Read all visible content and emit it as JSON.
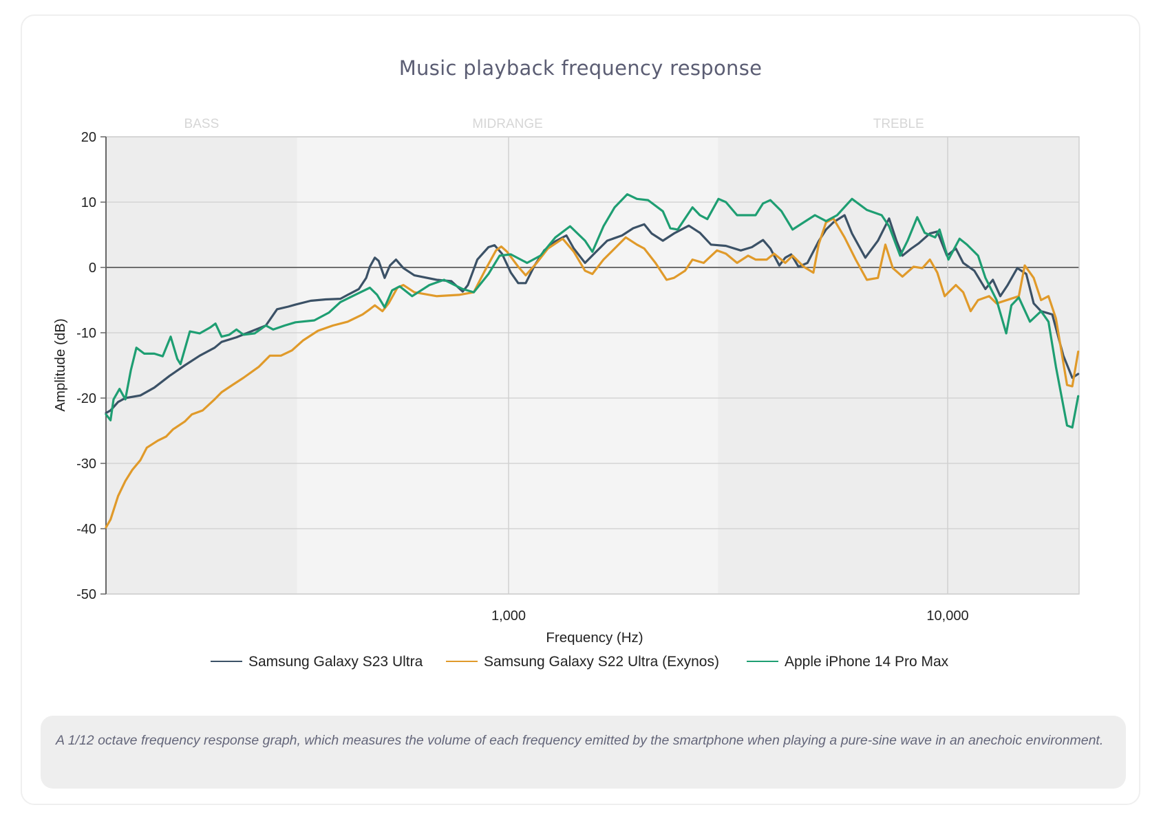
{
  "card": {
    "title": "Music playback frequency response",
    "caption": "A 1/12 octave frequency response graph, which measures the volume of each frequency emitted by the smartphone when playing a pure-sine wave in an anechoic environment."
  },
  "chart_data": {
    "type": "line",
    "title": "Music playback frequency response",
    "xlabel": "Frequency (Hz)",
    "ylabel": "Amplitude (dB)",
    "xscale": "log",
    "xlim": [
      120,
      20000
    ],
    "ylim": [
      -50,
      20
    ],
    "x_ticks": [
      {
        "value": 1000,
        "label": "1,000"
      },
      {
        "value": 10000,
        "label": "10,000"
      }
    ],
    "y_ticks": [
      20,
      10,
      0,
      -10,
      -20,
      -30,
      -40,
      -50
    ],
    "grid": true,
    "legend_position": "bottom",
    "bands": [
      {
        "name": "BASS",
        "from": 120,
        "to": 330,
        "color": "#ededed"
      },
      {
        "name": "MIDRANGE",
        "from": 330,
        "to": 3000,
        "color": "#f4f4f4"
      },
      {
        "name": "TREBLE",
        "from": 3000,
        "to": 20000,
        "color": "#ededed"
      }
    ],
    "series": [
      {
        "name": "Samsung Galaxy S23 Ultra",
        "color": "#3b5166",
        "points": [
          [
            121,
            -22.3
          ],
          [
            124,
            -21.9
          ],
          [
            129,
            -20.6
          ],
          [
            134,
            -20.0
          ],
          [
            145,
            -19.6
          ],
          [
            156,
            -18.4
          ],
          [
            169,
            -16.6
          ],
          [
            183,
            -15.0
          ],
          [
            198,
            -13.5
          ],
          [
            214,
            -12.3
          ],
          [
            222,
            -11.4
          ],
          [
            240,
            -10.7
          ],
          [
            259,
            -9.8
          ],
          [
            280,
            -8.9
          ],
          [
            297,
            -6.4
          ],
          [
            315,
            -6.0
          ],
          [
            327,
            -5.7
          ],
          [
            354,
            -5.1
          ],
          [
            383,
            -4.9
          ],
          [
            414,
            -4.8
          ],
          [
            430,
            -4.2
          ],
          [
            456,
            -3.3
          ],
          [
            474,
            -1.6
          ],
          [
            483,
            0.1
          ],
          [
            496,
            1.5
          ],
          [
            506,
            1.0
          ],
          [
            522,
            -1.6
          ],
          [
            537,
            0.3
          ],
          [
            554,
            1.2
          ],
          [
            576,
            -0.1
          ],
          [
            610,
            -1.2
          ],
          [
            686,
            -1.9
          ],
          [
            741,
            -2.1
          ],
          [
            786,
            -3.7
          ],
          [
            808,
            -2.7
          ],
          [
            849,
            1.2
          ],
          [
            900,
            3.1
          ],
          [
            929,
            3.4
          ],
          [
            966,
            2.1
          ],
          [
            1012,
            -0.8
          ],
          [
            1052,
            -2.4
          ],
          [
            1094,
            -2.4
          ],
          [
            1146,
            0.3
          ],
          [
            1205,
            2.6
          ],
          [
            1278,
            4.0
          ],
          [
            1354,
            4.9
          ],
          [
            1408,
            2.9
          ],
          [
            1493,
            0.7
          ],
          [
            1582,
            2.4
          ],
          [
            1677,
            4.1
          ],
          [
            1813,
            4.9
          ],
          [
            1922,
            6.0
          ],
          [
            2037,
            6.6
          ],
          [
            2118,
            5.2
          ],
          [
            2246,
            4.1
          ],
          [
            2380,
            5.2
          ],
          [
            2573,
            6.4
          ],
          [
            2727,
            5.3
          ],
          [
            2891,
            3.5
          ],
          [
            3126,
            3.3
          ],
          [
            3379,
            2.6
          ],
          [
            3582,
            3.1
          ],
          [
            3797,
            4.2
          ],
          [
            3947,
            2.9
          ],
          [
            4136,
            0.3
          ],
          [
            4266,
            1.5
          ],
          [
            4401,
            2.0
          ],
          [
            4575,
            0.1
          ],
          [
            4794,
            0.7
          ],
          [
            5082,
            4.0
          ],
          [
            5284,
            5.8
          ],
          [
            5493,
            6.9
          ],
          [
            5824,
            8.0
          ],
          [
            6055,
            5.2
          ],
          [
            6494,
            1.5
          ],
          [
            6938,
            4.1
          ],
          [
            7355,
            7.5
          ],
          [
            7646,
            4.1
          ],
          [
            7888,
            1.8
          ],
          [
            8264,
            2.9
          ],
          [
            8592,
            3.7
          ],
          [
            9110,
            5.2
          ],
          [
            9473,
            5.5
          ],
          [
            9960,
            1.8
          ],
          [
            10437,
            2.9
          ],
          [
            10851,
            0.7
          ],
          [
            11503,
            -0.5
          ],
          [
            12193,
            -3.3
          ],
          [
            12677,
            -1.9
          ],
          [
            13179,
            -4.4
          ],
          [
            13701,
            -2.7
          ],
          [
            14410,
            -0.1
          ],
          [
            15100,
            -1.0
          ],
          [
            15700,
            -5.5
          ],
          [
            16322,
            -6.7
          ],
          [
            17305,
            -7.2
          ],
          [
            18344,
            -13.5
          ],
          [
            19222,
            -16.9
          ],
          [
            19828,
            -16.3
          ]
        ]
      },
      {
        "name": "Samsung Galaxy S22 Ultra (Exynos)",
        "color": "#e09a2a",
        "points": [
          [
            121,
            -39.8
          ],
          [
            124,
            -38.6
          ],
          [
            129,
            -35.0
          ],
          [
            134,
            -32.7
          ],
          [
            139,
            -31.0
          ],
          [
            145,
            -29.5
          ],
          [
            150,
            -27.6
          ],
          [
            159,
            -26.5
          ],
          [
            166,
            -25.9
          ],
          [
            172,
            -24.8
          ],
          [
            183,
            -23.6
          ],
          [
            190,
            -22.5
          ],
          [
            201,
            -21.9
          ],
          [
            214,
            -20.2
          ],
          [
            222,
            -19.1
          ],
          [
            235,
            -18.0
          ],
          [
            249,
            -16.9
          ],
          [
            270,
            -15.2
          ],
          [
            286,
            -13.5
          ],
          [
            303,
            -13.5
          ],
          [
            321,
            -12.7
          ],
          [
            340,
            -11.2
          ],
          [
            368,
            -9.7
          ],
          [
            398,
            -8.9
          ],
          [
            430,
            -8.3
          ],
          [
            465,
            -7.2
          ],
          [
            483,
            -6.4
          ],
          [
            496,
            -5.8
          ],
          [
            516,
            -6.7
          ],
          [
            533,
            -5.5
          ],
          [
            558,
            -3.1
          ],
          [
            576,
            -2.7
          ],
          [
            610,
            -3.8
          ],
          [
            686,
            -4.4
          ],
          [
            771,
            -4.2
          ],
          [
            833,
            -3.8
          ],
          [
            883,
            -0.5
          ],
          [
            936,
            2.6
          ],
          [
            962,
            3.2
          ],
          [
            992,
            2.4
          ],
          [
            1052,
            0.1
          ],
          [
            1094,
            -1.2
          ],
          [
            1159,
            0.7
          ],
          [
            1229,
            2.9
          ],
          [
            1328,
            4.4
          ],
          [
            1408,
            2.4
          ],
          [
            1493,
            -0.5
          ],
          [
            1552,
            -1.0
          ],
          [
            1645,
            1.2
          ],
          [
            1744,
            2.9
          ],
          [
            1849,
            4.6
          ],
          [
            1960,
            3.5
          ],
          [
            2037,
            2.9
          ],
          [
            2160,
            0.7
          ],
          [
            2290,
            -1.9
          ],
          [
            2380,
            -1.6
          ],
          [
            2523,
            -0.5
          ],
          [
            2623,
            1.2
          ],
          [
            2781,
            0.7
          ],
          [
            2983,
            2.6
          ],
          [
            3126,
            2.1
          ],
          [
            3314,
            0.7
          ],
          [
            3513,
            1.8
          ],
          [
            3652,
            1.2
          ],
          [
            3871,
            1.2
          ],
          [
            4025,
            2.1
          ],
          [
            4266,
            0.7
          ],
          [
            4435,
            1.8
          ],
          [
            4701,
            0.1
          ],
          [
            4945,
            -0.8
          ],
          [
            5082,
            3.5
          ],
          [
            5284,
            6.9
          ],
          [
            5493,
            7.5
          ],
          [
            5824,
            4.6
          ],
          [
            6174,
            1.2
          ],
          [
            6545,
            -1.9
          ],
          [
            6938,
            -1.6
          ],
          [
            7213,
            3.5
          ],
          [
            7499,
            -0.1
          ],
          [
            7888,
            -1.4
          ],
          [
            8361,
            0.1
          ],
          [
            8761,
            -0.1
          ],
          [
            9110,
            1.2
          ],
          [
            9473,
            -0.8
          ],
          [
            9845,
            -4.4
          ],
          [
            10437,
            -2.7
          ],
          [
            10851,
            -3.8
          ],
          [
            11281,
            -6.7
          ],
          [
            11728,
            -5.0
          ],
          [
            12433,
            -4.4
          ],
          [
            12925,
            -5.5
          ],
          [
            14523,
            -4.4
          ],
          [
            14983,
            0.3
          ],
          [
            15700,
            -1.6
          ],
          [
            16322,
            -5.0
          ],
          [
            16970,
            -4.4
          ],
          [
            17644,
            -7.8
          ],
          [
            18707,
            -18.0
          ],
          [
            19222,
            -18.2
          ],
          [
            19828,
            -12.9
          ]
        ]
      },
      {
        "name": "Apple iPhone 14 Pro Max",
        "color": "#1e9e72",
        "points": [
          [
            121,
            -22.5
          ],
          [
            124,
            -23.4
          ],
          [
            126,
            -20.2
          ],
          [
            130,
            -18.6
          ],
          [
            134,
            -20.2
          ],
          [
            138,
            -15.7
          ],
          [
            142,
            -12.3
          ],
          [
            148,
            -13.2
          ],
          [
            156,
            -13.2
          ],
          [
            163,
            -13.6
          ],
          [
            170,
            -10.6
          ],
          [
            176,
            -14.0
          ],
          [
            179,
            -14.8
          ],
          [
            188,
            -9.8
          ],
          [
            198,
            -10.1
          ],
          [
            209,
            -9.2
          ],
          [
            215,
            -8.6
          ],
          [
            222,
            -10.6
          ],
          [
            231,
            -10.3
          ],
          [
            240,
            -9.5
          ],
          [
            249,
            -10.3
          ],
          [
            264,
            -10.1
          ],
          [
            280,
            -8.9
          ],
          [
            291,
            -9.5
          ],
          [
            309,
            -8.9
          ],
          [
            327,
            -8.4
          ],
          [
            361,
            -8.1
          ],
          [
            390,
            -6.9
          ],
          [
            414,
            -5.3
          ],
          [
            447,
            -4.2
          ],
          [
            483,
            -3.1
          ],
          [
            502,
            -4.2
          ],
          [
            522,
            -6.1
          ],
          [
            543,
            -3.5
          ],
          [
            565,
            -2.9
          ],
          [
            603,
            -4.4
          ],
          [
            660,
            -2.7
          ],
          [
            713,
            -1.9
          ],
          [
            786,
            -3.3
          ],
          [
            833,
            -3.8
          ],
          [
            900,
            -1.0
          ],
          [
            954,
            1.8
          ],
          [
            1012,
            2.0
          ],
          [
            1102,
            0.7
          ],
          [
            1182,
            1.8
          ],
          [
            1278,
            4.6
          ],
          [
            1381,
            6.3
          ],
          [
            1493,
            4.1
          ],
          [
            1552,
            2.4
          ],
          [
            1645,
            6.3
          ],
          [
            1744,
            9.2
          ],
          [
            1863,
            11.2
          ],
          [
            1960,
            10.5
          ],
          [
            2078,
            10.3
          ],
          [
            2246,
            8.6
          ],
          [
            2335,
            6.0
          ],
          [
            2427,
            5.8
          ],
          [
            2623,
            9.2
          ],
          [
            2727,
            8.0
          ],
          [
            2836,
            7.4
          ],
          [
            3006,
            10.5
          ],
          [
            3126,
            10.0
          ],
          [
            3314,
            8.0
          ],
          [
            3652,
            8.0
          ],
          [
            3797,
            9.8
          ],
          [
            3947,
            10.3
          ],
          [
            4184,
            8.6
          ],
          [
            4435,
            5.8
          ],
          [
            4701,
            6.9
          ],
          [
            4984,
            8.0
          ],
          [
            5284,
            7.1
          ],
          [
            5601,
            8.0
          ],
          [
            6055,
            10.5
          ],
          [
            6545,
            8.8
          ],
          [
            7074,
            8.0
          ],
          [
            7355,
            6.3
          ],
          [
            7796,
            1.8
          ],
          [
            8105,
            4.1
          ],
          [
            8525,
            7.7
          ],
          [
            8864,
            5.3
          ],
          [
            9363,
            4.6
          ],
          [
            9584,
            5.8
          ],
          [
            10039,
            1.2
          ],
          [
            10643,
            4.4
          ],
          [
            11064,
            3.5
          ],
          [
            11728,
            1.8
          ],
          [
            12193,
            -1.6
          ],
          [
            12925,
            -5.0
          ],
          [
            13594,
            -10.1
          ],
          [
            13970,
            -5.8
          ],
          [
            14523,
            -4.6
          ],
          [
            15396,
            -8.3
          ],
          [
            16322,
            -6.7
          ],
          [
            16970,
            -8.3
          ],
          [
            17644,
            -15.2
          ],
          [
            18707,
            -24.2
          ],
          [
            19222,
            -24.5
          ],
          [
            19828,
            -19.7
          ]
        ]
      }
    ]
  }
}
